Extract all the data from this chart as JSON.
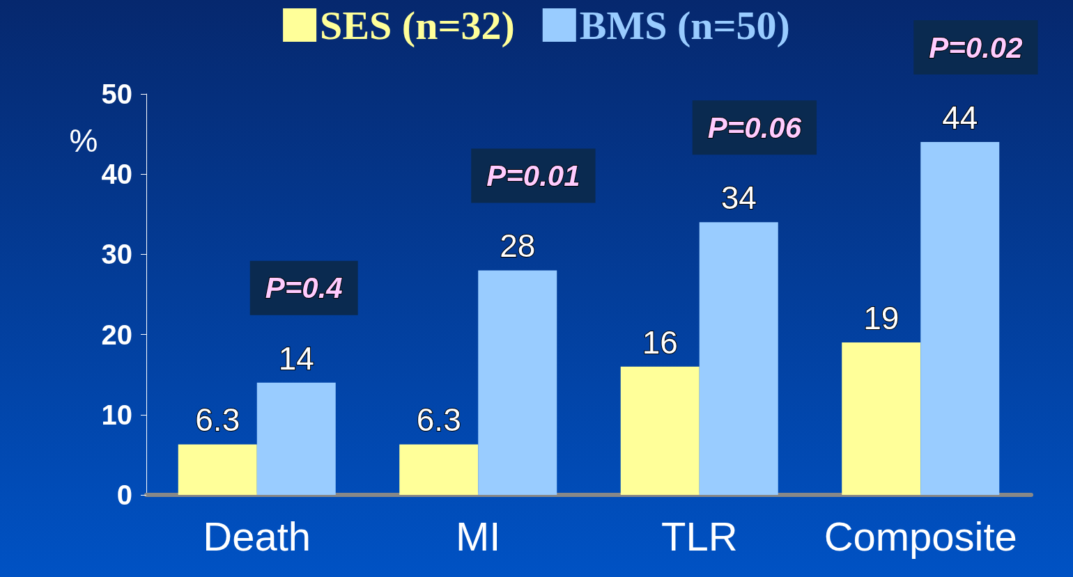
{
  "chart_data": {
    "type": "bar",
    "ylabel": "%",
    "categories": [
      "Death",
      "MI",
      "TLR",
      "Composite"
    ],
    "series": [
      {
        "name": "SES (n=32)",
        "color": "#ffff99",
        "values": [
          6.3,
          6.3,
          16,
          19
        ]
      },
      {
        "name": "BMS (n=50)",
        "color": "#99ccff",
        "values": [
          14,
          28,
          34,
          44
        ]
      }
    ],
    "ylim": [
      0,
      50
    ],
    "yticks": [
      0,
      10,
      20,
      30,
      40,
      50
    ],
    "data_labels": true,
    "grid": false,
    "legend": "top",
    "annotations": [
      "P=0.4",
      "P=0.01",
      "P=0.06",
      "P=0.02"
    ]
  }
}
